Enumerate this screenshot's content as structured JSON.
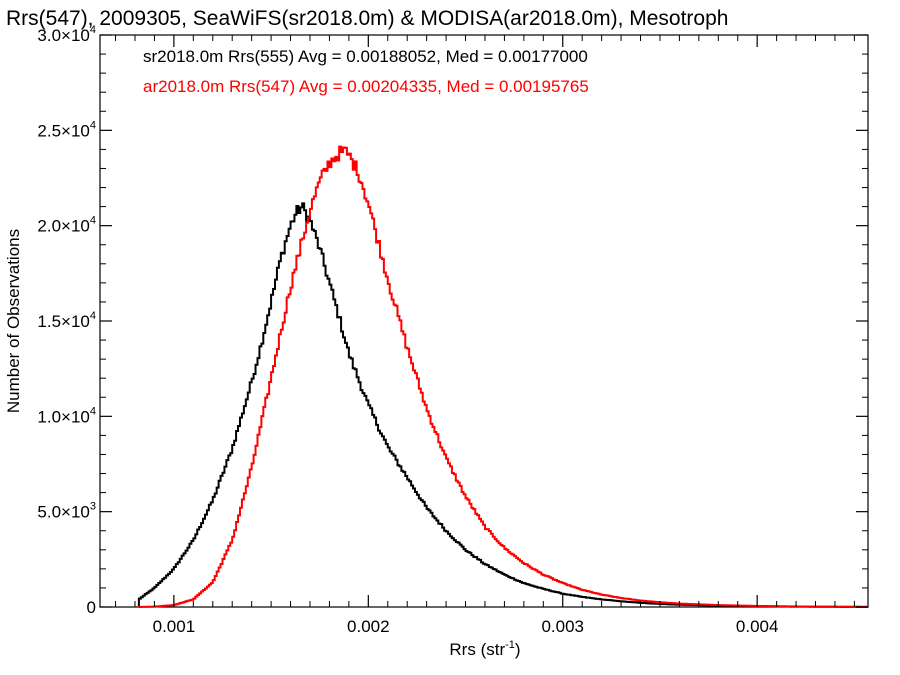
{
  "chart_data": {
    "type": "line",
    "title": "Rrs(547), 2009305, SeaWiFS(sr2018.0m) & MODISA(ar2018.0m), Mesotroph",
    "xlabel": "Rrs (str",
    "xlabel_sup": "-1",
    "xlabel_end": ")",
    "ylabel": "Number of Observations",
    "xlim": [
      0.00062,
      0.00457
    ],
    "ylim": [
      0,
      30000
    ],
    "x_ticks": [
      {
        "value": 0.001,
        "label": "0.001"
      },
      {
        "value": 0.002,
        "label": "0.002"
      },
      {
        "value": 0.003,
        "label": "0.003"
      },
      {
        "value": 0.004,
        "label": "0.004"
      }
    ],
    "y_ticks": [
      {
        "value": 0,
        "label": "0",
        "sup": ""
      },
      {
        "value": 5000,
        "label": "5.0×10",
        "sup": "3"
      },
      {
        "value": 10000,
        "label": "1.0×10",
        "sup": "4"
      },
      {
        "value": 15000,
        "label": "1.5×10",
        "sup": "4"
      },
      {
        "value": 20000,
        "label": "2.0×10",
        "sup": "4"
      },
      {
        "value": 25000,
        "label": "2.5×10",
        "sup": "4"
      },
      {
        "value": 30000,
        "label": "3.0×10",
        "sup": "4"
      }
    ],
    "legend_placement": "top-left",
    "series": [
      {
        "name": "sr2018.0m Rrs(555) Avg = 0.00188052, Med = 0.00177000",
        "color": "#000000",
        "x": [
          0.00082,
          0.0009,
          0.001,
          0.0011,
          0.0012,
          0.0013,
          0.0014,
          0.00145,
          0.0015,
          0.00155,
          0.0016,
          0.00163,
          0.00166,
          0.0017,
          0.00175,
          0.0018,
          0.00185,
          0.0019,
          0.002,
          0.0021,
          0.0022,
          0.0023,
          0.0024,
          0.0025,
          0.0026,
          0.0027,
          0.0028,
          0.0029,
          0.003,
          0.0031,
          0.0032,
          0.0033,
          0.0034,
          0.0035,
          0.0036,
          0.0038,
          0.004,
          0.0042,
          0.0044,
          0.00457
        ],
        "y": [
          400,
          1000,
          2000,
          3500,
          5600,
          8300,
          11800,
          13800,
          16000,
          18300,
          20000,
          20700,
          21000,
          20300,
          18800,
          17000,
          15200,
          13300,
          10600,
          8400,
          6800,
          5200,
          4000,
          3000,
          2250,
          1700,
          1250,
          950,
          700,
          530,
          400,
          300,
          220,
          160,
          120,
          70,
          40,
          20,
          10,
          5
        ]
      },
      {
        "name": "ar2018.0m Rrs(547) Avg = 0.00204335, Med = 0.00195765",
        "color": "#ff0000",
        "x": [
          0.00082,
          0.0009,
          0.001,
          0.0011,
          0.0012,
          0.0013,
          0.0014,
          0.0015,
          0.0016,
          0.0017,
          0.00175,
          0.0018,
          0.00185,
          0.00188,
          0.0019,
          0.00195,
          0.002,
          0.00205,
          0.0021,
          0.0022,
          0.0023,
          0.0024,
          0.0025,
          0.0026,
          0.0027,
          0.0028,
          0.0029,
          0.003,
          0.0031,
          0.0032,
          0.0033,
          0.0034,
          0.0035,
          0.0036,
          0.0038,
          0.004,
          0.0042,
          0.0044,
          0.00457
        ],
        "y": [
          0,
          20,
          100,
          400,
          1300,
          3500,
          7300,
          12000,
          16800,
          20800,
          22300,
          23300,
          23800,
          23900,
          23700,
          22800,
          21200,
          19200,
          17200,
          13600,
          10400,
          7800,
          5800,
          4200,
          3100,
          2300,
          1700,
          1250,
          900,
          650,
          470,
          340,
          250,
          180,
          100,
          55,
          30,
          15,
          8
        ]
      }
    ]
  }
}
